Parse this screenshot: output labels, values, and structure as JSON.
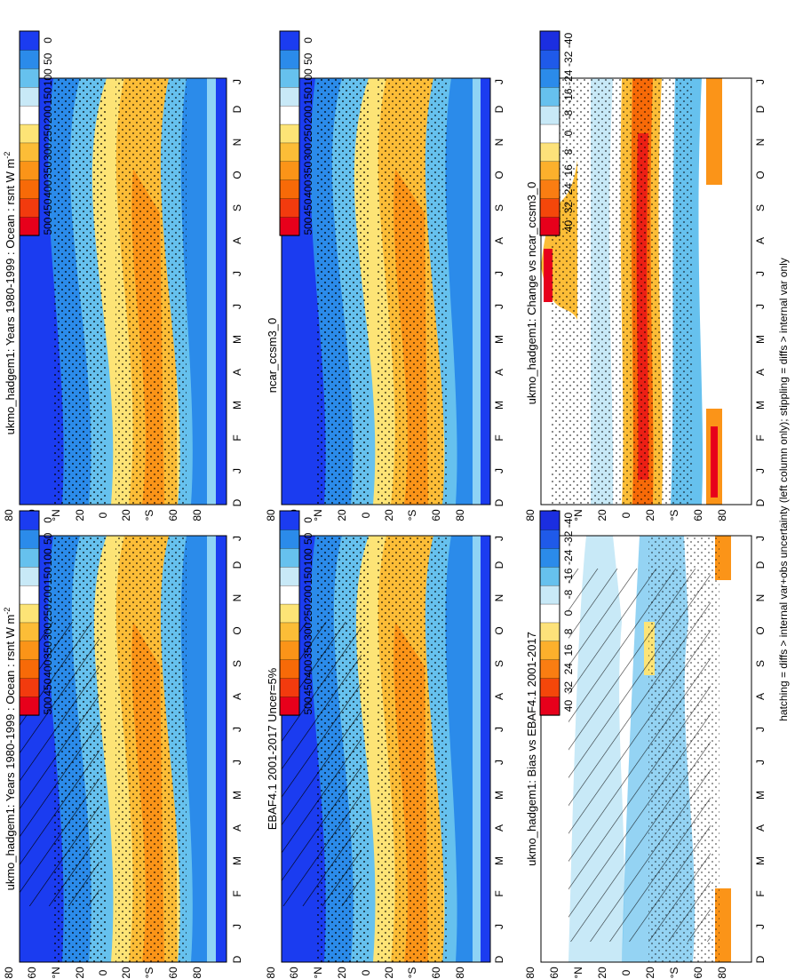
{
  "figure": {
    "footer_note": "hatching = diffs > internal var+obs uncertainty (left column only); stippling = diffs > internal var only",
    "colorbar_abs": {
      "levels": [
        "500",
        "450",
        "400",
        "350",
        "300",
        "250",
        "200",
        "150",
        "100",
        "50",
        "0"
      ],
      "colors": [
        "#e7001b",
        "#f23b0e",
        "#f76a08",
        "#fb9418",
        "#fcbd37",
        "#fde476",
        "#ffffff",
        "#c8e9f7",
        "#66c1ee",
        "#2b8bea",
        "#1b3cf0"
      ]
    },
    "colorbar_diff": {
      "levels": [
        "40",
        "32",
        "24",
        "16",
        "8",
        "0",
        "-8",
        "-16",
        "-24",
        "-32",
        "-40"
      ],
      "colors": [
        "#e7001b",
        "#f4470a",
        "#fa7d12",
        "#fcb02c",
        "#fde27a",
        "#ffffff",
        "#c8e9f7",
        "#66c1ee",
        "#2b8bea",
        "#1f5ae9",
        "#1b2ee0"
      ]
    }
  },
  "chart_data": [
    {
      "type": "heatmap",
      "panel": "top-left",
      "title": "ukmo_hadgem1: Years 1980-1999 : Ocean : rsnt W m",
      "title_superscript": "-2",
      "variable": "rsnt",
      "units": "W m-2",
      "x_axis": "month",
      "months": [
        "D",
        "J",
        "F",
        "M",
        "A",
        "M",
        "J",
        "J",
        "A",
        "S",
        "O",
        "N",
        "D",
        "J"
      ],
      "y_axis": "latitude",
      "lat_ticks": [
        "80",
        "60",
        "°N",
        "20",
        "0",
        "20",
        "°S",
        "60",
        "80"
      ],
      "value_range": [
        0,
        500
      ],
      "overlay": [
        "hatching",
        "stippling"
      ]
    },
    {
      "type": "heatmap",
      "panel": "top-right",
      "title": "ukmo_hadgem1: Years 1980-1999 : Ocean : rsnt W m",
      "title_superscript": "-2",
      "variable": "rsnt",
      "units": "W m-2",
      "months": [
        "D",
        "J",
        "F",
        "M",
        "A",
        "M",
        "J",
        "J",
        "A",
        "S",
        "O",
        "N",
        "D",
        "J"
      ],
      "lat_ticks": [
        "80",
        "60",
        "°N",
        "20",
        "0",
        "20",
        "°S",
        "60",
        "80"
      ],
      "value_range": [
        0,
        500
      ],
      "overlay": [
        "stippling"
      ]
    },
    {
      "type": "heatmap",
      "panel": "middle-left",
      "title": "EBAF4.1 2001-2017 Uncer=5%",
      "months": [
        "D",
        "J",
        "F",
        "M",
        "A",
        "M",
        "J",
        "J",
        "A",
        "S",
        "O",
        "N",
        "D",
        "J"
      ],
      "lat_ticks": [
        "80",
        "60",
        "°N",
        "20",
        "0",
        "20",
        "°S",
        "60",
        "80"
      ],
      "value_range": [
        0,
        500
      ],
      "overlay": [
        "hatching",
        "stippling"
      ]
    },
    {
      "type": "heatmap",
      "panel": "middle-right",
      "title": "ncar_ccsm3_0",
      "months": [
        "D",
        "J",
        "F",
        "M",
        "A",
        "M",
        "J",
        "J",
        "A",
        "S",
        "O",
        "N",
        "D",
        "J"
      ],
      "lat_ticks": [
        "80",
        "60",
        "°N",
        "20",
        "0",
        "20",
        "°S",
        "60",
        "80"
      ],
      "value_range": [
        0,
        500
      ],
      "overlay": [
        "stippling"
      ]
    },
    {
      "type": "heatmap",
      "panel": "bottom-left",
      "title": "ukmo_hadgem1: Bias vs EBAF4.1 2001-2017",
      "months": [
        "D",
        "J",
        "F",
        "M",
        "A",
        "M",
        "J",
        "J",
        "A",
        "S",
        "O",
        "N",
        "D",
        "J"
      ],
      "lat_ticks": [
        "80",
        "60",
        "°N",
        "20",
        "0",
        "20",
        "°S",
        "60",
        "80"
      ],
      "value_range": [
        -40,
        40
      ],
      "overlay": [
        "hatching",
        "stippling"
      ]
    },
    {
      "type": "heatmap",
      "panel": "bottom-right",
      "title": "ukmo_hadgem1: Change vs ncar_ccsm3_0",
      "months": [
        "D",
        "J",
        "F",
        "M",
        "A",
        "M",
        "J",
        "J",
        "A",
        "S",
        "O",
        "N",
        "D",
        "J"
      ],
      "lat_ticks": [
        "80",
        "60",
        "°N",
        "20",
        "0",
        "20",
        "°S",
        "60",
        "80"
      ],
      "value_range": [
        -40,
        40
      ],
      "overlay": [
        "stippling"
      ]
    }
  ]
}
